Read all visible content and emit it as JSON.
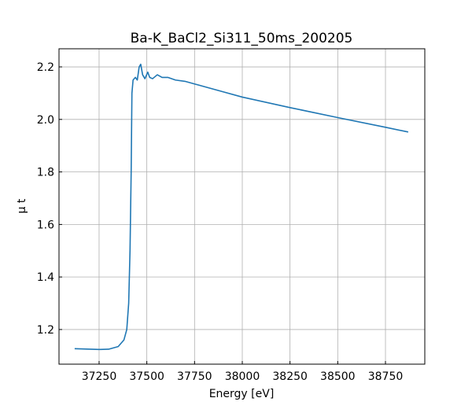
{
  "chart_data": {
    "type": "line",
    "title": "Ba-K_BaCl2_Si311_50ms_200205",
    "xlabel": "Energy [eV]",
    "ylabel": "μ t",
    "x": [
      37122,
      37250,
      37300,
      37350,
      37380,
      37395,
      37405,
      37412,
      37418,
      37422,
      37428,
      37440,
      37450,
      37460,
      37468,
      37478,
      37490,
      37505,
      37515,
      37530,
      37555,
      37580,
      37610,
      37650,
      37700,
      37750,
      37900,
      38000,
      38250,
      38500,
      38750,
      38869
    ],
    "series": [
      {
        "name": "Ba-K_BaCl2_Si311_50ms_200205",
        "color": "#1f77b4",
        "values": [
          1.127,
          1.124,
          1.125,
          1.135,
          1.16,
          1.2,
          1.3,
          1.5,
          1.8,
          2.1,
          2.15,
          2.16,
          2.15,
          2.2,
          2.21,
          2.17,
          2.155,
          2.18,
          2.16,
          2.155,
          2.17,
          2.16,
          2.16,
          2.15,
          2.145,
          2.135,
          2.105,
          2.085,
          2.045,
          2.007,
          1.97,
          1.952
        ]
      }
    ],
    "xlim": [
      37040,
      38956
    ],
    "ylim": [
      1.068,
      2.269
    ],
    "xticks": [
      37250,
      37500,
      37750,
      38000,
      38250,
      38500,
      38750
    ],
    "yticks": [
      1.2,
      1.4,
      1.6,
      1.8,
      {
        "value": 2,
        "label": "2.0"
      },
      2.2
    ],
    "grid": true
  }
}
